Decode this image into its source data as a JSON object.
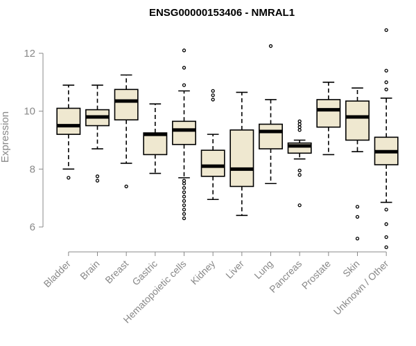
{
  "chart_data": {
    "type": "boxplot",
    "title": "ENSG00000153406 - NMRAL1",
    "xlabel": "",
    "ylabel": "Expression",
    "ylim": [
      5.2,
      12.8
    ],
    "yticks": [
      6,
      8,
      10,
      12
    ],
    "colors": {
      "box_fill": "#efe8d0",
      "stroke": "#000000",
      "axis": "#888888"
    },
    "categories": [
      "Bladder",
      "Brain",
      "Breast",
      "Gastric",
      "Hematopoietic cells",
      "Kidney",
      "Liver",
      "Lung",
      "Pancreas",
      "Prostate",
      "Skin",
      "Unknown / Other"
    ],
    "boxes": [
      {
        "name": "Bladder",
        "whisker_low": 8.0,
        "q1": 9.2,
        "median": 9.5,
        "q3": 10.1,
        "whisker_high": 10.9,
        "outliers": [
          7.7
        ]
      },
      {
        "name": "Brain",
        "whisker_low": 8.7,
        "q1": 9.5,
        "median": 9.8,
        "q3": 10.05,
        "whisker_high": 10.9,
        "outliers": [
          7.75,
          7.6
        ]
      },
      {
        "name": "Breast",
        "whisker_low": 8.2,
        "q1": 9.7,
        "median": 10.35,
        "q3": 10.75,
        "whisker_high": 11.25,
        "outliers": [
          7.4
        ]
      },
      {
        "name": "Gastric",
        "whisker_low": 7.85,
        "q1": 8.5,
        "median": 9.2,
        "q3": 9.25,
        "whisker_high": 10.25,
        "outliers": []
      },
      {
        "name": "Hematopoietic cells",
        "whisker_low": 7.7,
        "q1": 8.85,
        "median": 9.35,
        "q3": 9.65,
        "whisker_high": 10.7,
        "outliers": [
          12.1,
          11.5,
          10.9,
          7.6,
          7.5,
          7.35,
          7.2,
          7.05,
          6.9,
          6.75,
          6.6,
          6.45,
          6.3
        ]
      },
      {
        "name": "Kidney",
        "whisker_low": 6.95,
        "q1": 7.75,
        "median": 8.1,
        "q3": 8.65,
        "whisker_high": 9.2,
        "outliers": [
          10.7,
          10.55,
          10.4
        ]
      },
      {
        "name": "Liver",
        "whisker_low": 6.4,
        "q1": 7.4,
        "median": 8.0,
        "q3": 9.35,
        "whisker_high": 10.65,
        "outliers": []
      },
      {
        "name": "Lung",
        "whisker_low": 7.5,
        "q1": 8.7,
        "median": 9.3,
        "q3": 9.55,
        "whisker_high": 10.4,
        "outliers": [
          12.25
        ]
      },
      {
        "name": "Pancreas",
        "whisker_low": 8.35,
        "q1": 8.55,
        "median": 8.8,
        "q3": 8.9,
        "whisker_high": 9.0,
        "outliers": [
          9.65,
          9.55,
          9.45,
          9.35,
          7.95,
          7.8,
          6.75
        ]
      },
      {
        "name": "Prostate",
        "whisker_low": 8.5,
        "q1": 9.45,
        "median": 10.05,
        "q3": 10.4,
        "whisker_high": 11.0,
        "outliers": []
      },
      {
        "name": "Skin",
        "whisker_low": 8.6,
        "q1": 9.0,
        "median": 9.8,
        "q3": 10.35,
        "whisker_high": 10.8,
        "outliers": [
          6.7,
          6.35,
          5.6
        ]
      },
      {
        "name": "Unknown / Other",
        "whisker_low": 6.85,
        "q1": 8.15,
        "median": 8.6,
        "q3": 9.1,
        "whisker_high": 10.45,
        "outliers": [
          12.8,
          11.4,
          11.0,
          10.75,
          6.6,
          6.1,
          5.65,
          5.3
        ]
      }
    ]
  }
}
